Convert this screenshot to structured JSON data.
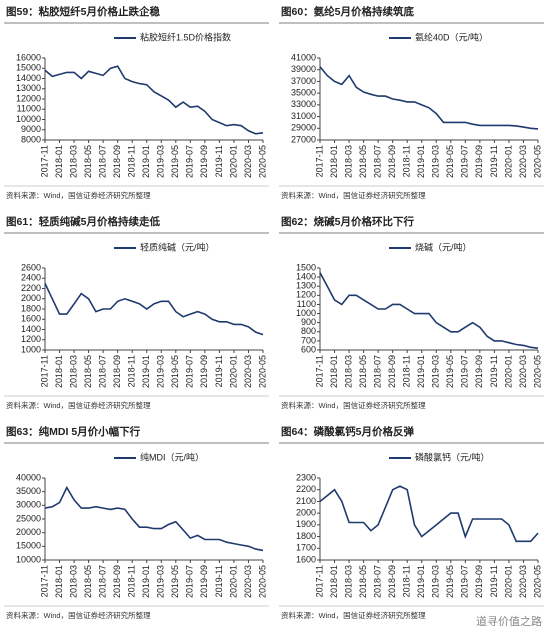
{
  "chart_data": [
    {
      "type": "line",
      "title": "图59：粘胶短纤5月价格止跌企稳",
      "source": "资料来源：Wind，国信证券经济研究所整理",
      "categories": [
        "2017-11",
        null,
        "2018-01",
        null,
        "2018-03",
        null,
        "2018-05",
        null,
        "2018-07",
        null,
        "2018-09",
        null,
        "2018-11",
        null,
        "2019-01",
        null,
        "2019-03",
        null,
        "2019-05",
        null,
        "2019-07",
        null,
        "2019-09",
        null,
        "2019-11",
        null,
        "2020-01",
        null,
        "2020-03",
        null,
        "2020-05"
      ],
      "series": [
        {
          "name": "粘胶短纤1.5D价格指数",
          "color": "#1f3a6e",
          "values": [
            14800,
            14200,
            14400,
            14600,
            14600,
            14000,
            14700,
            14500,
            14300,
            15000,
            15200,
            14000,
            13700,
            13500,
            13400,
            12700,
            12300,
            11900,
            11200,
            11700,
            11200,
            11300,
            10800,
            10000,
            9700,
            9400,
            9500,
            9400,
            8900,
            8600,
            8700
          ]
        }
      ],
      "ylim": [
        8000,
        16000
      ],
      "yticks": [
        8000,
        9000,
        10000,
        11000,
        12000,
        13000,
        14000,
        15000,
        16000
      ]
    },
    {
      "type": "line",
      "title": "图60：氨纶5月价格持续筑底",
      "source": "资料来源：Wind，国信证券经济研究所整理",
      "categories": [
        "2017-11",
        null,
        "2018-01",
        null,
        "2018-03",
        null,
        "2018-05",
        null,
        "2018-07",
        null,
        "2018-09",
        null,
        "2018-11",
        null,
        "2019-01",
        null,
        "2019-03",
        null,
        "2019-05",
        null,
        "2019-07",
        null,
        "2019-09",
        null,
        "2019-11",
        null,
        "2020-01",
        null,
        "2020-03",
        null,
        "2020-05"
      ],
      "series": [
        {
          "name": "氨纶40D（元/吨）",
          "color": "#1f3a6e",
          "values": [
            39500,
            38000,
            37000,
            36500,
            38000,
            36000,
            35200,
            34800,
            34500,
            34500,
            34000,
            33800,
            33500,
            33500,
            33000,
            32500,
            31500,
            30000,
            30000,
            30000,
            30000,
            29700,
            29500,
            29500,
            29500,
            29500,
            29500,
            29400,
            29200,
            29000,
            28900
          ]
        }
      ],
      "ylim": [
        27000,
        41000
      ],
      "yticks": [
        27000,
        29000,
        31000,
        33000,
        35000,
        37000,
        39000,
        41000
      ]
    },
    {
      "type": "line",
      "title": "图61：轻质纯碱5月价格持续走低",
      "source": "资料来源：Wind，国信证券经济研究所整理",
      "categories": [
        "2017-11",
        null,
        "2018-01",
        null,
        "2018-03",
        null,
        "2018-05",
        null,
        "2018-07",
        null,
        "2018-09",
        null,
        "2018-11",
        null,
        "2019-01",
        null,
        "2019-03",
        null,
        "2019-05",
        null,
        "2019-07",
        null,
        "2019-09",
        null,
        "2019-11",
        null,
        "2020-01",
        null,
        "2020-03",
        null,
        "2020-05"
      ],
      "series": [
        {
          "name": "轻质纯碱（元/吨）",
          "color": "#1f3a6e",
          "values": [
            2300,
            2000,
            1700,
            1700,
            1900,
            2100,
            2000,
            1750,
            1800,
            1800,
            1950,
            2000,
            1950,
            1900,
            1800,
            1900,
            1950,
            1950,
            1750,
            1650,
            1700,
            1750,
            1700,
            1600,
            1550,
            1550,
            1500,
            1500,
            1450,
            1350,
            1300
          ]
        }
      ],
      "ylim": [
        1000,
        2600
      ],
      "yticks": [
        1000,
        1200,
        1400,
        1600,
        1800,
        2000,
        2200,
        2400,
        2600
      ]
    },
    {
      "type": "line",
      "title": "图62：烧碱5月价格环比下行",
      "source": "资料来源：Wind，国信证券经济研究所整理",
      "categories": [
        "2017-11",
        null,
        "2018-01",
        null,
        "2018-03",
        null,
        "2018-05",
        null,
        "2018-07",
        null,
        "2018-09",
        null,
        "2018-11",
        null,
        "2019-01",
        null,
        "2019-03",
        null,
        "2019-05",
        null,
        "2019-07",
        null,
        "2019-09",
        null,
        "2019-11",
        null,
        "2020-01",
        null,
        "2020-03",
        null,
        "2020-05"
      ],
      "series": [
        {
          "name": "烧碱（元/吨）",
          "color": "#1f3a6e",
          "values": [
            1450,
            1300,
            1150,
            1100,
            1200,
            1200,
            1150,
            1100,
            1050,
            1050,
            1100,
            1100,
            1050,
            1000,
            1000,
            1000,
            900,
            850,
            800,
            800,
            850,
            900,
            850,
            750,
            700,
            700,
            680,
            660,
            650,
            630,
            620
          ]
        }
      ],
      "ylim": [
        600,
        1500
      ],
      "yticks": [
        600,
        700,
        800,
        900,
        1000,
        1100,
        1200,
        1300,
        1400,
        1500
      ]
    },
    {
      "type": "line",
      "title": "图63：纯MDI 5月价小幅下行",
      "source": "资料来源：Wind，国信证券经济研究所整理",
      "categories": [
        "2017-11",
        null,
        "2018-01",
        null,
        "2018-03",
        null,
        "2018-05",
        null,
        "2018-07",
        null,
        "2018-09",
        null,
        "2018-11",
        null,
        "2019-01",
        null,
        "2019-03",
        null,
        "2019-05",
        null,
        "2019-07",
        null,
        "2019-09",
        null,
        "2019-11",
        null,
        "2020-01",
        null,
        "2020-03",
        null,
        "2020-05"
      ],
      "series": [
        {
          "name": "纯MDI（元/吨）",
          "color": "#1f3a6e",
          "values": [
            29000,
            29500,
            31000,
            36500,
            32000,
            29000,
            29000,
            29500,
            29000,
            28500,
            29000,
            28500,
            25000,
            22000,
            22000,
            21500,
            21500,
            23000,
            24000,
            21000,
            18000,
            19000,
            17500,
            17500,
            17500,
            16500,
            16000,
            15500,
            15000,
            14000,
            13500
          ]
        }
      ],
      "ylim": [
        10000,
        40000
      ],
      "yticks": [
        10000,
        15000,
        20000,
        25000,
        30000,
        35000,
        40000
      ]
    },
    {
      "type": "line",
      "title": "图64：磷酸氯钙5月价格反弹",
      "source": "资料来源：Wind，国信证券经济研究所整理",
      "watermark": "道寻价值之路",
      "categories": [
        "2017-11",
        null,
        "2018-01",
        null,
        "2018-03",
        null,
        "2018-05",
        null,
        "2018-07",
        null,
        "2018-09",
        null,
        "2018-11",
        null,
        "2019-01",
        null,
        "2019-03",
        null,
        "2019-05",
        null,
        "2019-07",
        null,
        "2019-09",
        null,
        "2019-11",
        null,
        "2020-01",
        null,
        "2020-03",
        null,
        "2020-05"
      ],
      "series": [
        {
          "name": "磷酸氯钙（元/吨）",
          "color": "#1f3a6e",
          "values": [
            2100,
            2150,
            2200,
            2100,
            1920,
            1920,
            1920,
            1850,
            1900,
            2050,
            2200,
            2230,
            2200,
            1900,
            1800,
            1850,
            1900,
            1950,
            2000,
            2000,
            1800,
            1950,
            1950,
            1950,
            1950,
            1950,
            1900,
            1760,
            1760,
            1760,
            1830
          ]
        }
      ],
      "ylim": [
        1600,
        2300
      ],
      "yticks": [
        1600,
        1700,
        1800,
        1900,
        2000,
        2100,
        2200,
        2300
      ]
    }
  ]
}
